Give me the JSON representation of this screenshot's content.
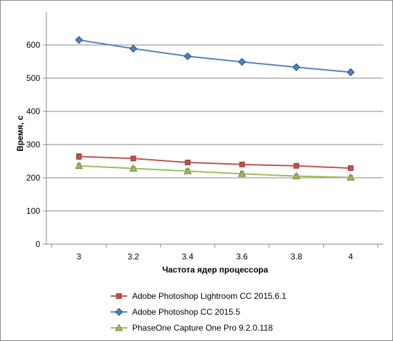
{
  "chart_data": {
    "type": "line",
    "title": "",
    "xlabel": "Частота  ядер процессора",
    "ylabel": "Время, с",
    "ylim": [
      0,
      700
    ],
    "yticks": [
      0,
      100,
      200,
      300,
      400,
      500,
      600
    ],
    "x": [
      "3",
      "3.2",
      "3.4",
      "3.6",
      "3.8",
      "4"
    ],
    "grid": "horizontal",
    "legend": "bottom",
    "series": [
      {
        "name": "Adobe Photoshop Lightroom CC 2015.6.1",
        "values": [
          264,
          258,
          246,
          240,
          236,
          229
        ],
        "errors": [
          8,
          4,
          5,
          4,
          7,
          5
        ],
        "color": "#C0504D",
        "marker": "square"
      },
      {
        "name": "Adobe Photoshop CC 2015.5",
        "values": [
          615,
          589,
          566,
          549,
          533,
          518
        ],
        "errors": [
          4,
          3,
          4,
          3,
          4,
          5
        ],
        "color": "#4F81BD",
        "marker": "diamond"
      },
      {
        "name": "PhaseOne Capture One Pro 9.2.0.118",
        "values": [
          236,
          228,
          220,
          212,
          205,
          201
        ],
        "errors": [
          6,
          5,
          6,
          6,
          5,
          5
        ],
        "color": "#9BBB59",
        "marker": "triangle"
      }
    ]
  }
}
